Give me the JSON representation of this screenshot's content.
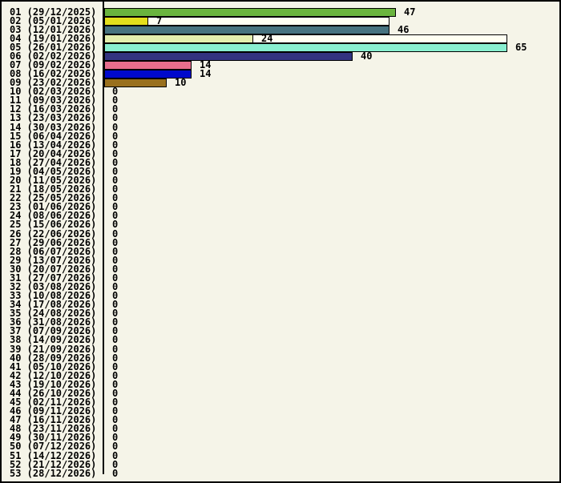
{
  "window": {
    "background_color": "#F5F4E8",
    "border_color": "#000000",
    "axis_color": "#000000",
    "track_fill_color": "#FFFFF2",
    "text_color": "#000000"
  },
  "chart_data": {
    "type": "bar",
    "orientation": "horizontal",
    "title": "",
    "xlabel": "",
    "ylabel": "",
    "xlim": [
      0,
      65
    ],
    "grid": false,
    "legend": null,
    "categories": [
      "01 (29/12/2025)",
      "02 (05/01/2026)",
      "03 (12/01/2026)",
      "04 (19/01/2026)",
      "05 (26/01/2026)",
      "06 (02/02/2026)",
      "07 (09/02/2026)",
      "08 (16/02/2026)",
      "09 (23/02/2026)",
      "10 (02/03/2026)",
      "11 (09/03/2026)",
      "12 (16/03/2026)",
      "13 (23/03/2026)",
      "14 (30/03/2026)",
      "15 (06/04/2026)",
      "16 (13/04/2026)",
      "17 (20/04/2026)",
      "18 (27/04/2026)",
      "19 (04/05/2026)",
      "20 (11/05/2026)",
      "21 (18/05/2026)",
      "22 (25/05/2026)",
      "23 (01/06/2026)",
      "24 (08/06/2026)",
      "25 (15/06/2026)",
      "26 (22/06/2026)",
      "27 (29/06/2026)",
      "28 (06/07/2026)",
      "29 (13/07/2026)",
      "30 (20/07/2026)",
      "31 (27/07/2026)",
      "32 (03/08/2026)",
      "33 (10/08/2026)",
      "34 (17/08/2026)",
      "35 (24/08/2026)",
      "36 (31/08/2026)",
      "37 (07/09/2026)",
      "38 (14/09/2026)",
      "39 (21/09/2026)",
      "40 (28/09/2026)",
      "41 (05/10/2026)",
      "42 (12/10/2026)",
      "43 (19/10/2026)",
      "44 (26/10/2026)",
      "45 (02/11/2026)",
      "46 (09/11/2026)",
      "47 (16/11/2026)",
      "48 (23/11/2026)",
      "49 (30/11/2026)",
      "50 (07/12/2026)",
      "51 (14/12/2026)",
      "52 (21/12/2026)",
      "53 (28/12/2026)"
    ],
    "values": [
      47,
      7,
      46,
      24,
      65,
      40,
      14,
      14,
      10,
      0,
      0,
      0,
      0,
      0,
      0,
      0,
      0,
      0,
      0,
      0,
      0,
      0,
      0,
      0,
      0,
      0,
      0,
      0,
      0,
      0,
      0,
      0,
      0,
      0,
      0,
      0,
      0,
      0,
      0,
      0,
      0,
      0,
      0,
      0,
      0,
      0,
      0,
      0,
      0,
      0,
      0,
      0,
      0
    ],
    "bar_colors": [
      "#6AB43E",
      "#E4DF1C",
      "#47737F",
      "#E4EFAE",
      "#89EFD0",
      "#333380",
      "#E76D8D",
      "#0009CC",
      "#99701D"
    ],
    "track_values": {
      "1": 46,
      "3": 65
    }
  }
}
